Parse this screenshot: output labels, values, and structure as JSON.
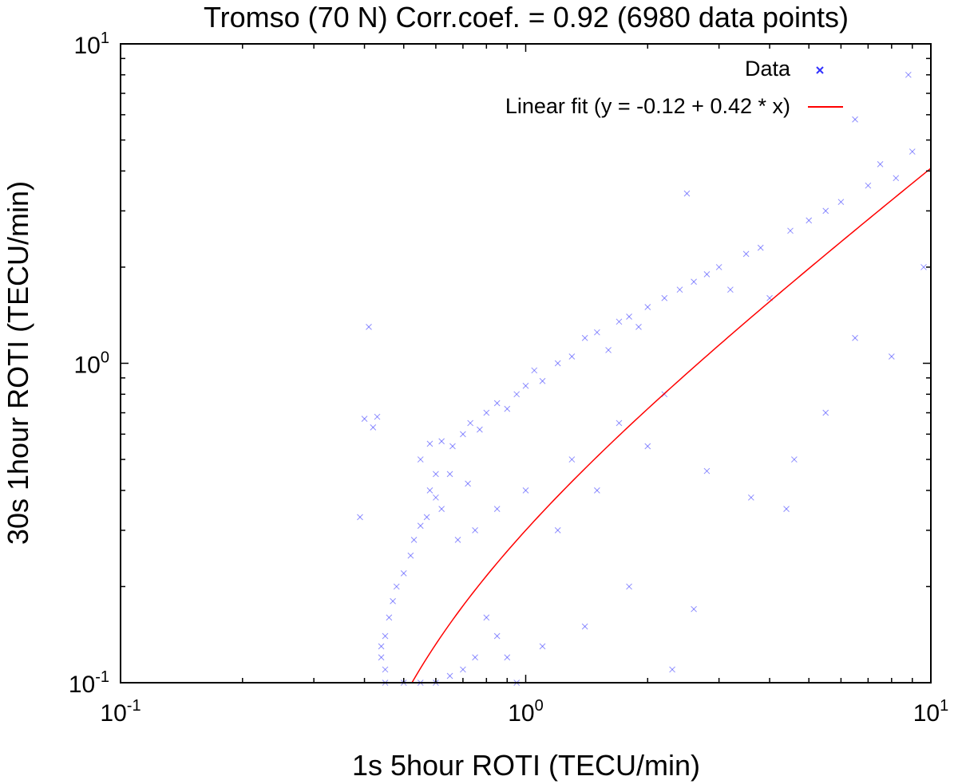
{
  "chart_data": {
    "type": "scatter",
    "title": "Tromso (70 N) Corr.coef. = 0.92 (6980 data points)",
    "xlabel": "1s 5hour ROTI (TECU/min)",
    "ylabel": "30s 1hour ROTI (TECU/min)",
    "xscale": "log",
    "yscale": "log",
    "xlim": [
      0.1,
      10
    ],
    "ylim": [
      0.1,
      10
    ],
    "x_ticks": [
      {
        "value": 0.1,
        "base": "10",
        "exp": "-1"
      },
      {
        "value": 1,
        "base": "10",
        "exp": "0"
      },
      {
        "value": 10,
        "base": "10",
        "exp": "1"
      }
    ],
    "y_ticks": [
      {
        "value": 0.1,
        "base": "10",
        "exp": "-1"
      },
      {
        "value": 1,
        "base": "10",
        "exp": "0"
      },
      {
        "value": 10,
        "base": "10",
        "exp": "1"
      }
    ],
    "grid": false,
    "legend_position": "top-right",
    "series": [
      {
        "name": "Data",
        "kind": "scatter",
        "marker": "x",
        "color": "#3333ff",
        "points": [
          [
            0.41,
            1.3
          ],
          [
            0.4,
            0.67
          ],
          [
            0.43,
            0.68
          ],
          [
            0.42,
            0.63
          ],
          [
            0.39,
            0.33
          ],
          [
            0.55,
            0.5
          ],
          [
            0.58,
            0.56
          ],
          [
            0.62,
            0.57
          ],
          [
            0.6,
            0.45
          ],
          [
            0.66,
            0.55
          ],
          [
            0.7,
            0.6
          ],
          [
            0.73,
            0.65
          ],
          [
            0.77,
            0.62
          ],
          [
            0.8,
            0.7
          ],
          [
            0.85,
            0.75
          ],
          [
            0.9,
            0.72
          ],
          [
            0.95,
            0.8
          ],
          [
            1.0,
            0.85
          ],
          [
            1.05,
            0.95
          ],
          [
            1.1,
            0.88
          ],
          [
            1.2,
            1.0
          ],
          [
            1.3,
            1.05
          ],
          [
            1.4,
            1.2
          ],
          [
            1.5,
            1.25
          ],
          [
            1.6,
            1.1
          ],
          [
            1.7,
            1.35
          ],
          [
            1.8,
            1.4
          ],
          [
            1.9,
            1.3
          ],
          [
            2.0,
            1.5
          ],
          [
            2.2,
            1.6
          ],
          [
            2.4,
            1.7
          ],
          [
            2.6,
            1.8
          ],
          [
            2.5,
            3.4
          ],
          [
            2.8,
            1.9
          ],
          [
            3.0,
            2.0
          ],
          [
            3.2,
            1.7
          ],
          [
            3.5,
            2.2
          ],
          [
            3.8,
            2.3
          ],
          [
            4.0,
            1.6
          ],
          [
            4.5,
            2.6
          ],
          [
            5.0,
            2.8
          ],
          [
            5.5,
            3.0
          ],
          [
            6.0,
            3.2
          ],
          [
            6.5,
            5.8
          ],
          [
            7.0,
            3.6
          ],
          [
            7.5,
            4.2
          ],
          [
            8.2,
            3.8
          ],
          [
            8.8,
            8.0
          ],
          [
            9.0,
            4.6
          ],
          [
            9.6,
            2.0
          ],
          [
            8.0,
            1.05
          ],
          [
            6.5,
            1.2
          ],
          [
            5.5,
            0.7
          ],
          [
            4.6,
            0.5
          ],
          [
            4.4,
            0.35
          ],
          [
            3.6,
            0.38
          ],
          [
            2.8,
            0.46
          ],
          [
            2.6,
            0.17
          ],
          [
            2.3,
            0.11
          ],
          [
            1.8,
            0.2
          ],
          [
            1.4,
            0.15
          ],
          [
            1.1,
            0.13
          ],
          [
            0.95,
            0.1
          ],
          [
            0.9,
            0.12
          ],
          [
            0.8,
            0.16
          ],
          [
            0.75,
            0.3
          ],
          [
            0.68,
            0.28
          ],
          [
            0.62,
            0.35
          ],
          [
            0.58,
            0.4
          ],
          [
            0.55,
            0.31
          ],
          [
            0.52,
            0.25
          ],
          [
            0.5,
            0.22
          ],
          [
            0.48,
            0.2
          ],
          [
            0.47,
            0.18
          ],
          [
            0.46,
            0.16
          ],
          [
            0.45,
            0.14
          ],
          [
            0.44,
            0.13
          ],
          [
            0.44,
            0.12
          ],
          [
            0.45,
            0.11
          ],
          [
            0.45,
            0.1
          ],
          [
            0.5,
            0.1
          ],
          [
            0.55,
            0.1
          ],
          [
            0.6,
            0.1
          ],
          [
            0.65,
            0.105
          ],
          [
            0.7,
            0.11
          ],
          [
            0.75,
            0.12
          ],
          [
            0.85,
            0.14
          ],
          [
            1.2,
            0.3
          ],
          [
            1.5,
            0.4
          ],
          [
            2.0,
            0.55
          ],
          [
            2.2,
            0.8
          ],
          [
            1.7,
            0.65
          ],
          [
            1.3,
            0.5
          ],
          [
            1.0,
            0.4
          ],
          [
            0.85,
            0.35
          ],
          [
            0.72,
            0.42
          ],
          [
            0.65,
            0.45
          ],
          [
            0.6,
            0.38
          ],
          [
            0.57,
            0.33
          ],
          [
            0.53,
            0.28
          ]
        ]
      },
      {
        "name": "Linear fit (y = -0.12 + 0.42 * x)",
        "kind": "line",
        "color": "#ff0000",
        "intercept": -0.12,
        "slope": 0.42
      }
    ]
  }
}
